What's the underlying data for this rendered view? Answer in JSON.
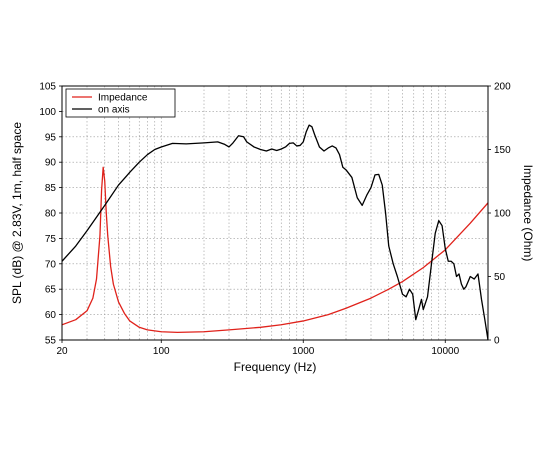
{
  "chart_data": {
    "type": "line",
    "xlabel": "Frequency (Hz)",
    "ylabel": "SPL (dB) @ 2.83V, 1m, half space",
    "y2label": "Impedance (Ohm)",
    "xscale": "log",
    "xlim": [
      20,
      20000
    ],
    "ylim": [
      55,
      105
    ],
    "y2lim": [
      0,
      200
    ],
    "grid": true,
    "legend_position": "top-left",
    "x_tick_labels": [
      {
        "value": 20,
        "label": "20"
      },
      {
        "value": 100,
        "label": "100"
      },
      {
        "value": 1000,
        "label": "1000"
      },
      {
        "value": 10000,
        "label": "10000"
      }
    ],
    "y_ticks": [
      55,
      60,
      65,
      70,
      75,
      80,
      85,
      90,
      95,
      100,
      105
    ],
    "y2_ticks": [
      0,
      50,
      100,
      150,
      200
    ],
    "series": [
      {
        "name": "Impedance",
        "axis": "right",
        "color": "#e0221b",
        "x": [
          20,
          25,
          30,
          33,
          35,
          37,
          38,
          39,
          40,
          41,
          42,
          44,
          46,
          50,
          55,
          60,
          70,
          80,
          100,
          130,
          200,
          300,
          500,
          700,
          1000,
          1500,
          2000,
          3000,
          4000,
          5000,
          7000,
          10000,
          15000,
          20000
        ],
        "values": [
          12,
          16,
          23,
          33,
          48,
          82,
          118,
          136,
          125,
          100,
          82,
          58,
          44,
          30,
          21,
          15,
          10,
          8,
          6.5,
          6,
          6.5,
          8,
          10,
          12,
          15,
          20,
          25,
          33,
          40,
          46,
          57,
          71,
          92,
          108
        ]
      },
      {
        "name": "on axis",
        "axis": "left",
        "color": "#000000",
        "x": [
          20,
          25,
          30,
          40,
          50,
          60,
          70,
          80,
          90,
          100,
          120,
          150,
          200,
          250,
          280,
          300,
          320,
          350,
          380,
          400,
          450,
          500,
          550,
          600,
          650,
          700,
          750,
          800,
          850,
          900,
          950,
          1000,
          1050,
          1100,
          1150,
          1200,
          1300,
          1400,
          1500,
          1600,
          1700,
          1800,
          1900,
          2000,
          2200,
          2400,
          2600,
          2800,
          3000,
          3200,
          3400,
          3600,
          3800,
          4000,
          4300,
          4600,
          5000,
          5300,
          5600,
          5900,
          6200,
          6500,
          6800,
          7000,
          7500,
          8000,
          8500,
          9000,
          9500,
          10000,
          10500,
          11000,
          11500,
          12000,
          12500,
          13000,
          13500,
          14000,
          15000,
          16000,
          17000,
          18000,
          19000,
          20000
        ],
        "values": [
          70.5,
          73.5,
          76.5,
          81.5,
          85.5,
          88,
          90,
          91.5,
          92.5,
          93,
          93.7,
          93.6,
          93.8,
          94,
          93.5,
          93,
          93.8,
          95.2,
          95,
          94,
          93,
          92.5,
          92.2,
          92.6,
          92.3,
          92.6,
          93,
          93.7,
          93.8,
          93.2,
          93.3,
          94,
          96,
          97.3,
          97,
          95.5,
          93,
          92.2,
          92.8,
          93.2,
          92.8,
          91.5,
          89,
          88.5,
          87,
          83,
          81.5,
          83.5,
          85,
          87.5,
          87.6,
          85.5,
          80,
          73.5,
          70,
          67.5,
          64,
          63.5,
          65,
          64,
          59,
          61,
          63,
          61,
          63.5,
          70,
          76,
          78.5,
          77.5,
          73,
          70.5,
          70.5,
          70,
          67.5,
          68,
          66,
          65,
          65.5,
          67.5,
          67,
          68,
          63,
          59,
          55
        ]
      }
    ]
  }
}
